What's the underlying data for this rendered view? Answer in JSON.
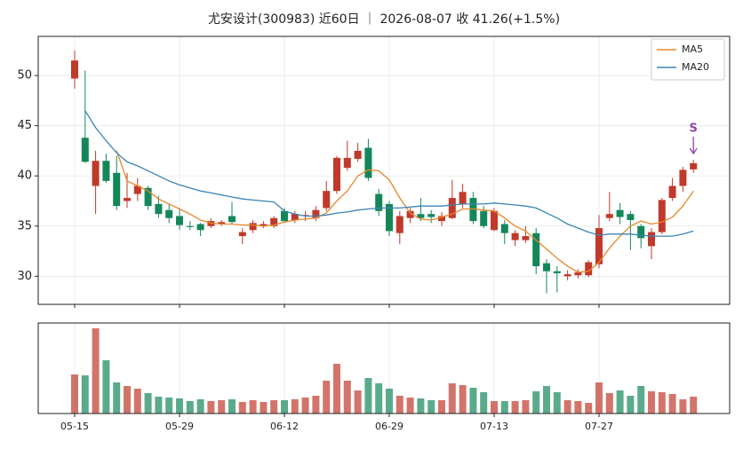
{
  "chart_data": {
    "type": "candlestick",
    "title": "尤安设计(300983) 近60日 ｜ 2026-08-07 收 41.26(+1.5%)",
    "categories": [
      "05-15",
      null,
      null,
      null,
      null,
      null,
      null,
      null,
      null,
      null,
      "05-29",
      null,
      null,
      null,
      null,
      null,
      null,
      null,
      null,
      null,
      "06-12",
      null,
      null,
      null,
      null,
      null,
      null,
      null,
      null,
      null,
      "06-29",
      null,
      null,
      null,
      null,
      null,
      null,
      null,
      null,
      null,
      "07-13",
      null,
      null,
      null,
      null,
      null,
      null,
      null,
      null,
      null,
      "07-27",
      null,
      null,
      null,
      null,
      null,
      null,
      null,
      null,
      null
    ],
    "open": [
      49.7,
      43.8,
      39,
      41.5,
      40.3,
      37.5,
      38.2,
      38.8,
      37.2,
      36.6,
      36.0,
      35.0,
      35.2,
      35.0,
      35.2,
      36.0,
      34.0,
      34.6,
      35.0,
      35.0,
      36.5,
      35.6,
      36.0,
      35.8,
      36.8,
      38.5,
      40.8,
      41.7,
      42.8,
      38.2,
      37.2,
      34.3,
      35.8,
      36.2,
      36.2,
      35.5,
      35.8,
      37.2,
      37.8,
      36.5,
      34.6,
      35.2,
      33.6,
      33.6,
      34.3,
      31.3,
      30.5,
      30.0,
      30.1,
      30.1,
      31.2,
      35.8,
      36.6,
      36.2,
      35.0,
      33.0,
      34.4,
      37.8,
      39.0,
      40.65
    ],
    "high": [
      52.5,
      50.5,
      42.5,
      42.2,
      42.0,
      40.3,
      39.8,
      39.0,
      38.0,
      37.2,
      36.8,
      35.5,
      35.3,
      35.8,
      35.6,
      37.4,
      34.8,
      35.6,
      35.5,
      36.0,
      36.8,
      36.5,
      36.5,
      37.0,
      39.5,
      42.0,
      43.5,
      43.3,
      43.7,
      38.7,
      37.5,
      36.5,
      36.8,
      37.8,
      36.6,
      36.4,
      39.6,
      39.2,
      38.4,
      37.0,
      36.8,
      35.6,
      34.6,
      35.0,
      34.8,
      31.7,
      31.0,
      30.6,
      30.7,
      31.6,
      36.1,
      38.4,
      37.3,
      36.5,
      35.2,
      34.8,
      37.8,
      39.8,
      40.9,
      41.6
    ],
    "low": [
      48.7,
      41.3,
      36.2,
      39.3,
      36.6,
      36.8,
      37.5,
      36.6,
      35.8,
      35.3,
      34.6,
      34.6,
      34.0,
      34.8,
      35.0,
      35.2,
      33.2,
      34.3,
      34.8,
      34.8,
      35.3,
      35.3,
      35.5,
      35.5,
      36.5,
      38.2,
      40.5,
      41.4,
      39.5,
      36.0,
      34.0,
      33.2,
      35.3,
      35.5,
      35.3,
      35.0,
      35.7,
      36.8,
      35.2,
      34.8,
      34.5,
      33.2,
      33.0,
      33.3,
      30.2,
      28.3,
      28.4,
      29.6,
      29.8,
      29.9,
      30.8,
      35.5,
      35.2,
      32.6,
      32.8,
      31.7,
      34.2,
      37.5,
      38.4,
      40.3
    ],
    "close": [
      51.5,
      41.4,
      41.5,
      39.5,
      37.0,
      37.8,
      39.0,
      37.0,
      36.2,
      35.8,
      35.1,
      34.9,
      34.6,
      35.5,
      35.4,
      35.4,
      34.4,
      35.3,
      35.2,
      35.8,
      35.5,
      36.2,
      36.1,
      36.6,
      38.5,
      41.8,
      41.8,
      42.5,
      39.8,
      36.5,
      34.5,
      36.0,
      36.5,
      35.8,
      35.9,
      36.0,
      37.8,
      38.4,
      35.5,
      35.0,
      36.5,
      34.3,
      34.3,
      34.0,
      31.0,
      30.5,
      30.3,
      30.2,
      30.4,
      31.4,
      34.8,
      36.2,
      35.9,
      35.6,
      33.8,
      34.4,
      37.6,
      39.0,
      40.6,
      41.26
    ],
    "up_color": "#c0392b",
    "down_color": "#14875a",
    "series": [
      {
        "name": "MA5",
        "color": "#e8872a",
        "values": [
          null,
          null,
          null,
          null,
          42.5,
          39.5,
          39.0,
          38.5,
          37.7,
          37.2,
          36.7,
          36.2,
          35.6,
          35.3,
          35.2,
          35.2,
          35.1,
          35.1,
          35.0,
          35.1,
          35.4,
          35.6,
          35.7,
          35.8,
          36.3,
          37.5,
          38.5,
          40.0,
          40.6,
          40.5,
          39.6,
          37.8,
          36.3,
          35.7,
          35.6,
          35.9,
          36.2,
          36.7,
          36.7,
          36.6,
          36.5,
          35.8,
          35.0,
          34.5,
          33.6,
          32.7,
          31.8,
          31.0,
          30.4,
          30.5,
          31.4,
          32.8,
          34.0,
          35.0,
          35.5,
          35.2,
          35.4,
          35.9,
          37.0,
          38.5
        ]
      },
      {
        "name": "MA20",
        "color": "#3a84b5",
        "values": [
          null,
          46.5,
          44.8,
          43.5,
          42.3,
          41.4,
          41.0,
          40.5,
          40.0,
          39.5,
          39.1,
          38.8,
          38.5,
          38.3,
          38.1,
          37.9,
          37.7,
          37.6,
          37.5,
          37.4,
          36.5,
          36.2,
          36.0,
          36.0,
          36.1,
          36.3,
          36.4,
          36.6,
          36.7,
          36.8,
          36.8,
          36.8,
          36.9,
          37.0,
          37.0,
          37.0,
          37.1,
          37.2,
          37.2,
          37.2,
          37.3,
          37.2,
          37.1,
          37.0,
          36.8,
          36.3,
          35.8,
          35.2,
          34.8,
          34.4,
          34.1,
          34.2,
          34.2,
          34.2,
          34.1,
          34.0,
          34.0,
          34.0,
          34.2,
          34.5
        ]
      }
    ],
    "ylim": [
      27.2,
      53.9
    ],
    "yticks": [
      30,
      35,
      40,
      45,
      50
    ],
    "grid": true,
    "legend": "upper right",
    "annotation": {
      "text": "S",
      "color": "#8e44ad"
    },
    "volume": {
      "ylim": [
        0,
        102
      ],
      "values": [
        44,
        43,
        96,
        60,
        35,
        31,
        28,
        23,
        19,
        18,
        17,
        14,
        16,
        14,
        15,
        16,
        13,
        15,
        13,
        15,
        15,
        16,
        18,
        20,
        37,
        56,
        37,
        26,
        40,
        34,
        28,
        20,
        18,
        17,
        15,
        15,
        34,
        32,
        29,
        24,
        14,
        14,
        14,
        15,
        25,
        31,
        24,
        15,
        14,
        12,
        35,
        23,
        26,
        20,
        31,
        25,
        24,
        22,
        16,
        19
      ]
    }
  }
}
